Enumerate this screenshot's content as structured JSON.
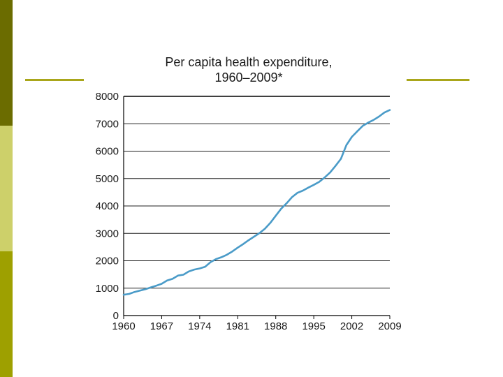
{
  "chart_data": {
    "type": "line",
    "title": [
      "Per capita health expenditure,",
      "1960–2009*"
    ],
    "xlabel": "",
    "ylabel": "",
    "xlim": [
      1960,
      2009
    ],
    "ylim": [
      0,
      8000
    ],
    "x_ticks": [
      "1960",
      "1967",
      "1974",
      "1981",
      "1988",
      "1995",
      "2002",
      "2009"
    ],
    "y_ticks": [
      "8000",
      "7000",
      "6000",
      "5000",
      "4000",
      "3000",
      "2000",
      "1000",
      "0"
    ],
    "grid": "horizontal",
    "series": [
      {
        "name": "Per capita health expenditure",
        "color": "#4a9bc8",
        "x": [
          1960,
          1961,
          1962,
          1963,
          1964,
          1965,
          1966,
          1967,
          1968,
          1969,
          1970,
          1971,
          1972,
          1973,
          1974,
          1975,
          1976,
          1977,
          1978,
          1979,
          1980,
          1981,
          1982,
          1983,
          1984,
          1985,
          1986,
          1987,
          1988,
          1989,
          1990,
          1991,
          1992,
          1993,
          1994,
          1995,
          1996,
          1997,
          1998,
          1999,
          2000,
          2001,
          2002,
          2003,
          2004,
          2005,
          2006,
          2007,
          2008,
          2009
        ],
        "values": [
          760,
          790,
          860,
          910,
          960,
          1030,
          1090,
          1160,
          1280,
          1340,
          1460,
          1490,
          1610,
          1680,
          1720,
          1780,
          1950,
          2060,
          2130,
          2220,
          2340,
          2480,
          2610,
          2750,
          2880,
          3010,
          3170,
          3380,
          3640,
          3900,
          4100,
          4320,
          4480,
          4560,
          4670,
          4770,
          4880,
          5040,
          5220,
          5460,
          5720,
          6220,
          6520,
          6720,
          6920,
          7040,
          7140,
          7260,
          7410,
          7500
        ]
      }
    ]
  },
  "theme": {
    "sidebar_colors": [
      "#6b6c00",
      "#cdd06a",
      "#9ea000"
    ],
    "rule_color": "#a9a61a"
  }
}
